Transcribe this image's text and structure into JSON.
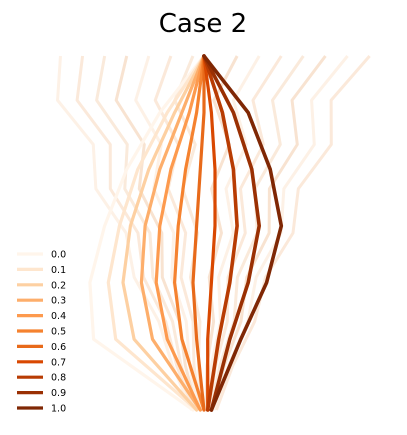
{
  "chart_data": {
    "type": "line",
    "title": "Case 2",
    "xlabel": "",
    "ylabel": "",
    "xlim": [
      0,
      1
    ],
    "ylim": [
      0,
      1
    ],
    "grid": false,
    "legend_placement": "bottom-left",
    "y": [
      1.0,
      0.84,
      0.68,
      0.52,
      0.36,
      0.2,
      0.0
    ],
    "series": [
      {
        "name": "0.0",
        "color": "#fff5eb",
        "x": [
          0.5,
          0.38,
          0.29,
          0.23,
          0.19,
          0.2,
          0.47
        ]
      },
      {
        "name": "0.1",
        "color": "#fee6ce",
        "x": [
          0.5,
          0.4,
          0.32,
          0.27,
          0.24,
          0.26,
          0.48
        ]
      },
      {
        "name": "0.2",
        "color": "#fdd0a2",
        "x": [
          0.5,
          0.42,
          0.35,
          0.3,
          0.28,
          0.31,
          0.48
        ]
      },
      {
        "name": "0.3",
        "color": "#fdae6b",
        "x": [
          0.5,
          0.44,
          0.38,
          0.34,
          0.33,
          0.36,
          0.49
        ]
      },
      {
        "name": "0.4",
        "color": "#fd9a4e",
        "x": [
          0.5,
          0.46,
          0.41,
          0.38,
          0.37,
          0.4,
          0.49
        ]
      },
      {
        "name": "0.5",
        "color": "#f5822f",
        "x": [
          0.5,
          0.48,
          0.45,
          0.43,
          0.42,
          0.44,
          0.5
        ]
      },
      {
        "name": "0.6",
        "color": "#e86a1a",
        "x": [
          0.5,
          0.5,
          0.49,
          0.48,
          0.47,
          0.48,
          0.5
        ]
      },
      {
        "name": "0.7",
        "color": "#d94801",
        "x": [
          0.5,
          0.52,
          0.53,
          0.53,
          0.52,
          0.51,
          0.51
        ]
      },
      {
        "name": "0.8",
        "color": "#b83c03",
        "x": [
          0.5,
          0.55,
          0.58,
          0.59,
          0.57,
          0.54,
          0.51
        ]
      },
      {
        "name": "0.9",
        "color": "#9a3003",
        "x": [
          0.5,
          0.58,
          0.63,
          0.65,
          0.62,
          0.57,
          0.52
        ]
      },
      {
        "name": "1.0",
        "color": "#7f2704",
        "x": [
          0.5,
          0.62,
          0.68,
          0.71,
          0.67,
          0.6,
          0.52
        ]
      }
    ]
  }
}
